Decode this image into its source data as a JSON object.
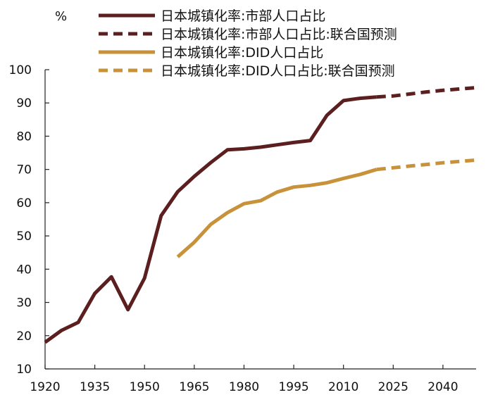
{
  "chart_data": {
    "type": "line",
    "title": "",
    "ylabel": "%",
    "xlabel": "",
    "xlim": [
      1920,
      2050
    ],
    "ylim": [
      10,
      100
    ],
    "x_ticks": [
      1920,
      1935,
      1950,
      1965,
      1980,
      1995,
      2010,
      2025,
      2040
    ],
    "y_ticks": [
      10,
      20,
      30,
      40,
      50,
      60,
      70,
      80,
      90,
      100
    ],
    "grid": false,
    "legend_position": "top-right",
    "series": [
      {
        "name": "日本城镇化率:市部人口占比",
        "color": "#5C1F1F",
        "style": "solid",
        "points": [
          [
            1920,
            18
          ],
          [
            1925,
            21.6
          ],
          [
            1930,
            24
          ],
          [
            1935,
            32.7
          ],
          [
            1940,
            37.7
          ],
          [
            1945,
            27.8
          ],
          [
            1950,
            37.3
          ],
          [
            1955,
            56.1
          ],
          [
            1960,
            63.3
          ],
          [
            1965,
            67.9
          ],
          [
            1970,
            72.1
          ],
          [
            1975,
            75.9
          ],
          [
            1980,
            76.2
          ],
          [
            1985,
            76.7
          ],
          [
            1990,
            77.4
          ],
          [
            1995,
            78.1
          ],
          [
            2000,
            78.7
          ],
          [
            2005,
            86.3
          ],
          [
            2010,
            90.7
          ],
          [
            2015,
            91.4
          ],
          [
            2020,
            91.8
          ]
        ]
      },
      {
        "name": "日本城镇化率:市部人口占比:联合国预测",
        "color": "#5C1F1F",
        "style": "dashed",
        "points": [
          [
            2020,
            91.8
          ],
          [
            2025,
            92.1
          ],
          [
            2030,
            92.7
          ],
          [
            2035,
            93.3
          ],
          [
            2040,
            93.8
          ],
          [
            2045,
            94.2
          ],
          [
            2050,
            94.6
          ]
        ]
      },
      {
        "name": "日本城镇化率:DID人口占比",
        "color": "#C8923A",
        "style": "solid",
        "points": [
          [
            1960,
            43.7
          ],
          [
            1965,
            48.1
          ],
          [
            1970,
            53.5
          ],
          [
            1975,
            57
          ],
          [
            1980,
            59.7
          ],
          [
            1985,
            60.6
          ],
          [
            1990,
            63.2
          ],
          [
            1995,
            64.7
          ],
          [
            2000,
            65.2
          ],
          [
            2005,
            66
          ],
          [
            2010,
            67.3
          ],
          [
            2015,
            68.5
          ],
          [
            2020,
            70
          ]
        ]
      },
      {
        "name": "日本城镇化率:DID人口占比:联合国预测",
        "color": "#C8923A",
        "style": "dashed",
        "points": [
          [
            2020,
            70
          ],
          [
            2025,
            70.5
          ],
          [
            2030,
            71
          ],
          [
            2035,
            71.5
          ],
          [
            2040,
            72
          ],
          [
            2045,
            72.4
          ],
          [
            2050,
            72.8
          ]
        ]
      }
    ]
  }
}
